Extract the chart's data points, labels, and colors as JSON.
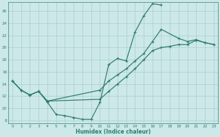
{
  "xlabel": "Humidex (Indice chaleur)",
  "background_color": "#cce8e8",
  "grid_color": "#aacccc",
  "line_color": "#2e7d6e",
  "xlim": [
    -0.5,
    23.5
  ],
  "ylim": [
    7.5,
    27.5
  ],
  "xticks": [
    0,
    1,
    2,
    3,
    4,
    5,
    6,
    7,
    8,
    9,
    10,
    11,
    12,
    13,
    14,
    15,
    16,
    17,
    18,
    19,
    20,
    21,
    22,
    23
  ],
  "yticks": [
    8,
    10,
    12,
    14,
    16,
    18,
    20,
    22,
    24,
    26
  ],
  "line1_x": [
    0,
    1,
    2,
    3,
    4,
    5,
    6,
    7,
    8,
    9,
    10,
    11,
    12,
    13,
    14,
    15,
    16,
    17
  ],
  "line1_y": [
    14.5,
    13.0,
    12.2,
    12.8,
    11.0,
    9.0,
    8.8,
    8.5,
    8.2,
    8.2,
    11.0,
    17.2,
    18.2,
    17.8,
    22.5,
    25.2,
    27.2,
    27.0
  ],
  "line2_x": [
    0,
    1,
    2,
    3,
    4,
    10,
    11,
    12,
    13,
    14,
    15,
    16,
    17,
    19,
    20,
    21,
    22,
    23
  ],
  "line2_y": [
    14.5,
    13.0,
    12.2,
    12.8,
    11.2,
    13.0,
    14.5,
    15.5,
    16.5,
    17.8,
    19.0,
    21.0,
    23.0,
    21.5,
    21.0,
    21.3,
    20.8,
    20.5
  ],
  "line3_x": [
    0,
    1,
    2,
    3,
    4,
    10,
    11,
    12,
    13,
    14,
    15,
    16,
    17,
    18,
    19,
    20,
    21,
    22,
    23
  ],
  "line3_y": [
    14.5,
    13.0,
    12.2,
    12.8,
    11.2,
    11.5,
    12.8,
    14.0,
    15.2,
    16.5,
    18.0,
    19.5,
    20.0,
    20.2,
    20.5,
    20.5,
    21.2,
    20.8,
    20.5
  ]
}
